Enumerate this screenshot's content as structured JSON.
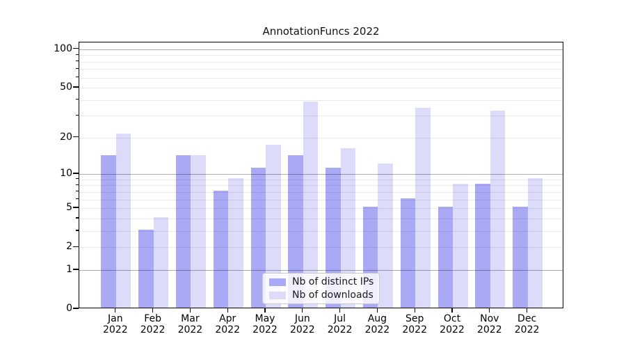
{
  "chart_data": {
    "type": "bar",
    "title": "AnnotationFuncs 2022",
    "categories": [
      "Jan",
      "Feb",
      "Mar",
      "Apr",
      "May",
      "Jun",
      "Jul",
      "Aug",
      "Sep",
      "Oct",
      "Nov",
      "Dec"
    ],
    "category_year": "2022",
    "series": [
      {
        "name": "Nb of distinct IPs",
        "color": "#a9a9f6",
        "values": [
          14,
          3,
          14,
          7,
          11,
          14,
          11,
          5,
          6,
          5,
          8,
          5
        ]
      },
      {
        "name": "Nb of downloads",
        "color": "#dcdcfa",
        "values": [
          21,
          4,
          14,
          9,
          17,
          38,
          16,
          12,
          34,
          8,
          32,
          9
        ]
      }
    ],
    "yscale": "log1p",
    "ylim": [
      0,
      113
    ],
    "yticks": [
      0,
      1,
      2,
      5,
      10,
      20,
      50,
      100
    ],
    "ytick_labels": [
      "0",
      "1",
      "2",
      "5",
      "10",
      "20",
      "50",
      "100"
    ],
    "grid_major": [
      1,
      10,
      100
    ],
    "grid_minor": [
      2,
      3,
      4,
      5,
      6,
      7,
      8,
      9,
      20,
      30,
      40,
      50,
      60,
      70,
      80,
      90
    ],
    "grid_on": true,
    "legend_position": "lower center",
    "xlabel": "",
    "ylabel": ""
  },
  "colors": {
    "background": "#ffffff",
    "spine": "#000000",
    "grid_major": "#b0b0b0",
    "grid_minor": "#ebebeb",
    "text": "#111111"
  }
}
